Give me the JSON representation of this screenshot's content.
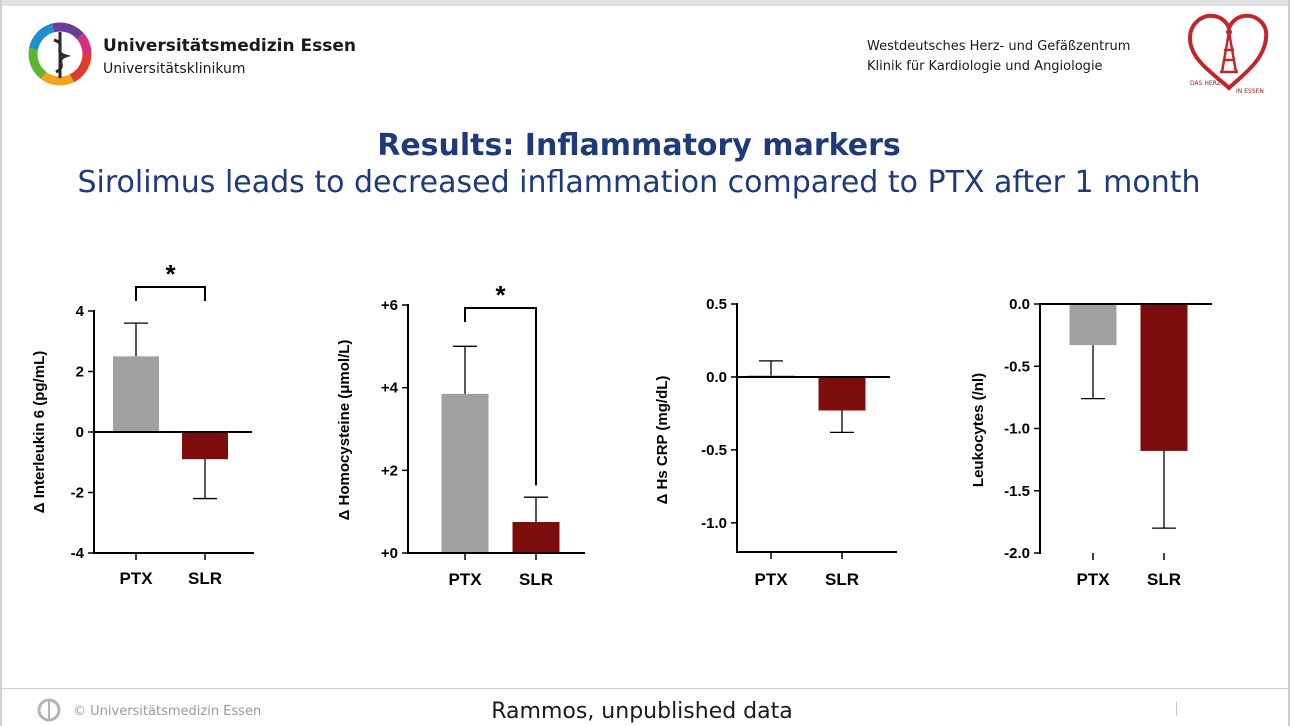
{
  "header": {
    "university_name": "Universitätsmedizin Essen",
    "university_sub": "Universitätsklinikum",
    "center_line1": "Westdeutsches Herz- und Gefäßzentrum",
    "center_line2": "Klinik für Kardiologie und Angiologie",
    "heart_logo_text": [
      "DAS HERZ",
      "IN ESSEN"
    ]
  },
  "slide": {
    "title": "Results: Inflammatory markers",
    "subtitle": "Sirolimus leads to decreased inflammation compared to PTX after 1 month"
  },
  "footer": {
    "copyright": "© Universitätsmedizin Essen",
    "source": "Rammos, unpublished data"
  },
  "colors": {
    "title": "#1f3a7a",
    "ptx_bar": "#a0a0a0",
    "slr_bar": "#7d0d0d",
    "heart": "#c0262a"
  },
  "chart_data": [
    {
      "type": "bar",
      "categories": [
        "PTX",
        "SLR"
      ],
      "values": [
        2.5,
        -0.9
      ],
      "error_upper": [
        1.1,
        1.3
      ],
      "ylabel": "Δ Interleukin 6 (pg/mL)",
      "ylim": [
        -4,
        4
      ],
      "yticks": [
        "4",
        "2",
        "0",
        "-2",
        "-4"
      ],
      "ytick_values": [
        4,
        2,
        0,
        -2,
        -4
      ],
      "significance": "*",
      "grid": false
    },
    {
      "type": "bar",
      "categories": [
        "PTX",
        "SLR"
      ],
      "values": [
        3.85,
        0.75
      ],
      "error_upper": [
        1.15,
        0.6
      ],
      "ylabel": "Δ Homocysteine (μmol/L)",
      "ylim": [
        0,
        6
      ],
      "yticks": [
        "+6",
        "+4",
        "+2",
        "+0"
      ],
      "ytick_values": [
        6,
        4,
        2,
        0
      ],
      "significance": "*",
      "grid": false
    },
    {
      "type": "bar",
      "categories": [
        "PTX",
        "SLR"
      ],
      "values": [
        0.01,
        -0.23
      ],
      "error_upper": [
        0.1,
        0.15
      ],
      "ylabel": "Δ Hs CRP (mg/dL)",
      "ylim": [
        -1.2,
        0.5
      ],
      "yticks": [
        "0.5",
        "0.0",
        "-0.5",
        "-1.0"
      ],
      "ytick_values": [
        0.5,
        0,
        -0.5,
        -1.0
      ],
      "significance": "",
      "grid": false
    },
    {
      "type": "bar",
      "categories": [
        "PTX",
        "SLR"
      ],
      "values": [
        -0.33,
        -1.18
      ],
      "error_upper": [
        0.43,
        0.62
      ],
      "ylabel": "Leukocytes (/nl)",
      "ylim": [
        -2.0,
        0.0
      ],
      "yticks": [
        "0.0",
        "-0.5",
        "-1.0",
        "-1.5",
        "-2.0"
      ],
      "ytick_values": [
        0,
        -0.5,
        -1.0,
        -1.5,
        -2.0
      ],
      "significance": "",
      "grid": false
    }
  ]
}
